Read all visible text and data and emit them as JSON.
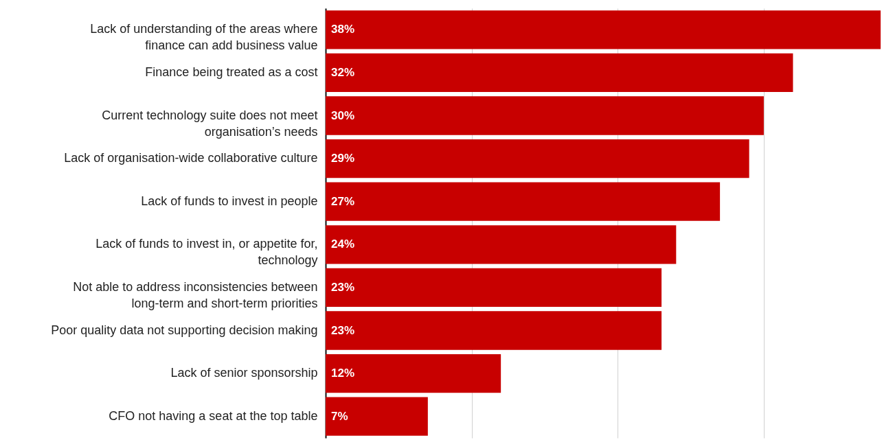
{
  "chart_data": {
    "type": "bar",
    "orientation": "horizontal",
    "categories": [
      "Lack of understanding of the areas where finance can add business value",
      "Finance being treated as a cost",
      "Current technology suite does not meet organisation’s needs",
      "Lack of organisation-wide collaborative culture",
      "Lack of funds to invest in people",
      "Lack of funds to invest in, or appetite for, technology",
      "Not able to address inconsistencies between long-term and short-term priorities",
      "Poor quality data not supporting decision making",
      "Lack of senior sponsorship",
      "CFO not having a seat at the top table"
    ],
    "values": [
      38,
      32,
      30,
      29,
      27,
      24,
      23,
      23,
      12,
      7
    ],
    "value_labels": [
      "38%",
      "32%",
      "30%",
      "29%",
      "27%",
      "24%",
      "23%",
      "23%",
      "12%",
      "7%"
    ],
    "color": "#c80000",
    "xlim": [
      0,
      38
    ],
    "xticks": [
      {
        "value": 0,
        "label": null
      },
      {
        "value": 10,
        "label": null
      },
      {
        "value": 20,
        "label": null
      },
      {
        "value": 30,
        "label": null
      }
    ],
    "grid": "x",
    "tick_labels": "y"
  }
}
